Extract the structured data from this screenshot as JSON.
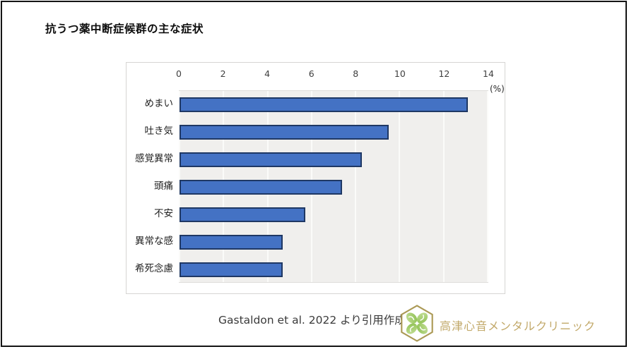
{
  "title": "抗うつ薬中断症候群の主な症状",
  "chart_data": {
    "type": "bar",
    "orientation": "horizontal",
    "title": "抗うつ薬中断症候群の主な症状",
    "categories": [
      "めまい",
      "吐き気",
      "感覚異常",
      "頭痛",
      "不安",
      "異常な感",
      "希死念慮"
    ],
    "values": [
      13.1,
      9.5,
      8.3,
      7.4,
      5.7,
      4.7,
      4.7
    ],
    "xlim": [
      0,
      14
    ],
    "xticks": [
      0,
      2,
      4,
      6,
      8,
      10,
      12,
      14
    ],
    "unit_label": "(%)",
    "grid": true,
    "legend": "none",
    "bar_color": "#4472c4",
    "bar_border_color": "#1f3864",
    "plot_bg": "#f0efed"
  },
  "footer": {
    "source": "Gastaldon et al. 2022 より引用作成",
    "clinic_name": "高津心音メンタルクリニック",
    "logo_icon": "clover-hexagon-icon",
    "logo_outline_color": "#ab9955",
    "logo_leaf_color_dark": "#8bbf4e",
    "logo_leaf_color_light": "#c7e09b",
    "clinic_name_color": "#c2a96a"
  }
}
